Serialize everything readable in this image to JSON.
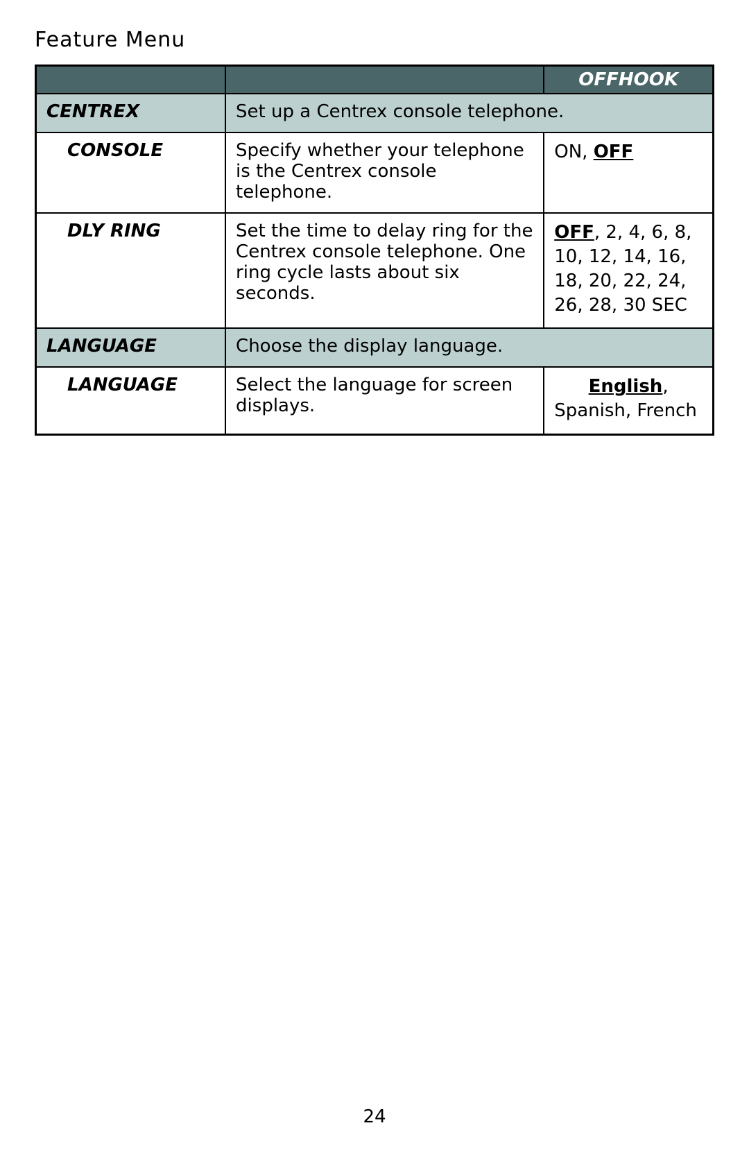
{
  "title": "Feature Menu",
  "page_number": "24",
  "colors": {
    "header_bg": "#4a6668",
    "section_bg": "#bdd0d0",
    "border": "#000000",
    "text": "#000000"
  },
  "header": {
    "col1": "",
    "col2": "",
    "col3": "OFFHOOK"
  },
  "rows": [
    {
      "type": "section",
      "label": "CENTREX",
      "desc": "Set up a Centrex console telephone."
    },
    {
      "type": "item",
      "label": "CONSOLE",
      "desc": "Specify whether your telephone is the Centrex console telephone.",
      "options_pre": "ON, ",
      "options_bold_u": "OFF",
      "options_post": ""
    },
    {
      "type": "item",
      "label": "DLY RING",
      "desc": "Set the time to delay ring for the Centrex console telephone. One ring cycle lasts about six seconds.",
      "options_bold_u": "OFF",
      "options_post": ", 2, 4, 6, 8, 10, 12, 14, 16, 18, 20, 22, 24, 26, 28, 30 SEC"
    },
    {
      "type": "section",
      "label": "LANGUAGE",
      "desc": "Choose the display language."
    },
    {
      "type": "item",
      "label": "LANGUAGE",
      "desc": "Select the language for screen displays.",
      "options_bold_u": "English",
      "options_post": ", Spanish, French",
      "options_center_first": true
    }
  ]
}
